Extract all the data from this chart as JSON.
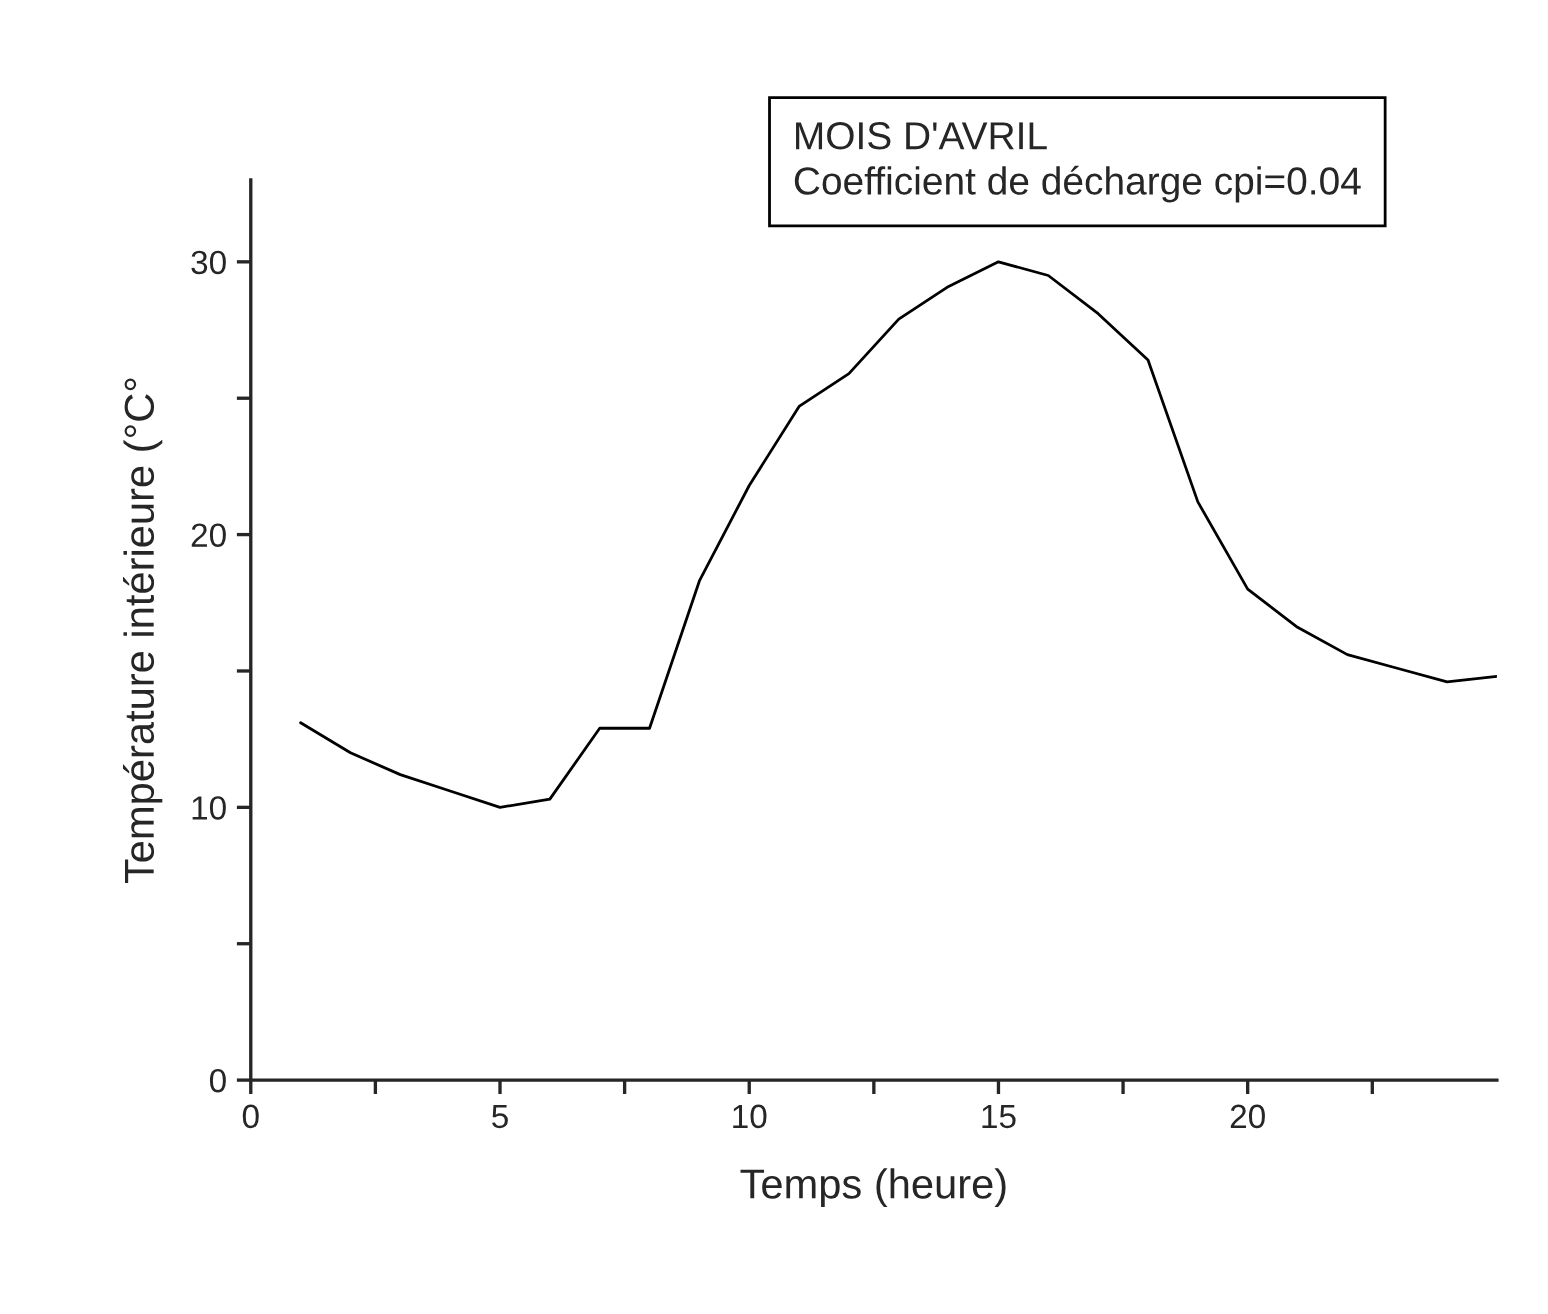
{
  "chart_data": {
    "type": "line",
    "xlabel": "Temps (heure)",
    "ylabel": "Température intérieure (°C°",
    "annotations": [
      "MOIS D'AVRIL",
      "Coefficient de décharge cpi=0.04"
    ],
    "x": [
      1,
      2,
      3,
      4,
      5,
      6,
      7,
      8,
      9,
      10,
      11,
      12,
      13,
      14,
      15,
      16,
      17,
      18,
      19,
      20,
      21,
      22,
      23,
      24,
      25
    ],
    "series": [
      {
        "color": "#000000",
        "values": [
          13.1,
          12.0,
          11.2,
          10.6,
          10.0,
          10.3,
          12.9,
          12.9,
          18.3,
          21.8,
          24.7,
          25.9,
          27.9,
          29.1,
          30.0,
          29.5,
          28.1,
          26.4,
          21.2,
          18.0,
          16.6,
          15.6,
          15.1,
          14.6,
          14.8
        ]
      }
    ],
    "xlim": [
      0,
      25
    ],
    "ylim": [
      0,
      33
    ],
    "xticks": [
      0,
      {
        "value": 2.5,
        "label": null
      },
      5,
      {
        "value": 7.5,
        "label": null
      },
      10,
      {
        "value": 12.5,
        "label": null
      },
      15,
      {
        "value": 17.5,
        "label": null
      },
      20,
      {
        "value": 22.5,
        "label": null
      }
    ],
    "yticks": [
      0,
      {
        "value": 5,
        "label": null
      },
      10,
      {
        "value": 15,
        "label": null
      },
      20,
      {
        "value": 25,
        "label": null
      },
      30
    ],
    "grid": false,
    "legend": false,
    "marker": "none",
    "line_style": "solid"
  }
}
